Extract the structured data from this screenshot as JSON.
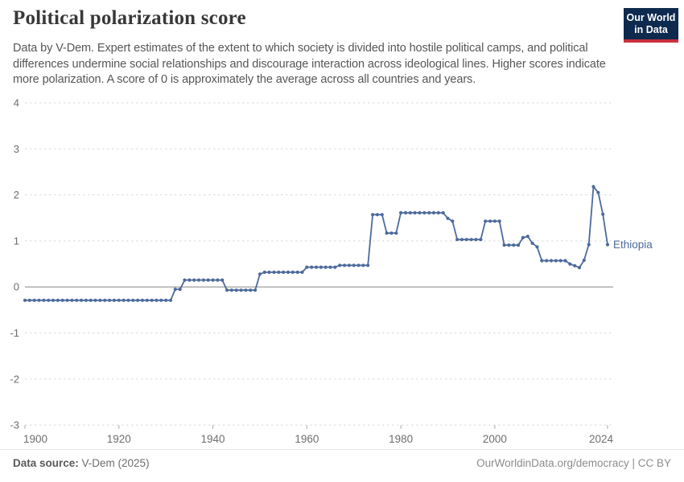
{
  "header": {
    "title": "Political polarization score",
    "subtitle": "Data by V-Dem. Expert estimates of the extent to which society is divided into hostile political camps, and political differences undermine social relationships and discourage interaction across ideological lines. Higher scores indicate more polarization. A score of 0 is approximately the average across all countries and years.",
    "logo": {
      "line1": "Our World",
      "line2": "in Data"
    }
  },
  "chart_data": {
    "type": "line",
    "title": "Political polarization score",
    "xlabel": "",
    "ylabel": "",
    "ylim": [
      -3,
      4
    ],
    "yticks": [
      4,
      3,
      2,
      1,
      0,
      -1,
      -2,
      -3
    ],
    "xticks": [
      1900,
      1920,
      1940,
      1960,
      1980,
      2000,
      2024
    ],
    "grid": "horizontal dashed gridlines, solid line at zero",
    "legend": "entity label at end of line",
    "years": {
      "start": 1900,
      "end": 2024,
      "step": 1
    },
    "series": [
      {
        "name": "Ethiopia",
        "values": [
          -0.29,
          -0.29,
          -0.29,
          -0.29,
          -0.29,
          -0.29,
          -0.29,
          -0.29,
          -0.29,
          -0.29,
          -0.29,
          -0.29,
          -0.29,
          -0.29,
          -0.29,
          -0.29,
          -0.29,
          -0.29,
          -0.29,
          -0.29,
          -0.29,
          -0.29,
          -0.29,
          -0.29,
          -0.29,
          -0.29,
          -0.29,
          -0.29,
          -0.29,
          -0.29,
          -0.29,
          -0.29,
          -0.05,
          -0.05,
          0.15,
          0.15,
          0.15,
          0.15,
          0.15,
          0.15,
          0.15,
          0.15,
          0.15,
          -0.07,
          -0.07,
          -0.07,
          -0.07,
          -0.07,
          -0.07,
          -0.07,
          0.28,
          0.32,
          0.32,
          0.32,
          0.32,
          0.32,
          0.32,
          0.32,
          0.32,
          0.32,
          0.43,
          0.43,
          0.43,
          0.43,
          0.43,
          0.43,
          0.43,
          0.47,
          0.47,
          0.47,
          0.47,
          0.47,
          0.47,
          0.47,
          1.57,
          1.57,
          1.57,
          1.17,
          1.17,
          1.17,
          1.61,
          1.61,
          1.61,
          1.61,
          1.61,
          1.61,
          1.61,
          1.61,
          1.61,
          1.61,
          1.49,
          1.43,
          1.03,
          1.03,
          1.03,
          1.03,
          1.03,
          1.03,
          1.43,
          1.43,
          1.43,
          1.43,
          0.91,
          0.91,
          0.91,
          0.91,
          1.07,
          1.1,
          0.95,
          0.87,
          0.57,
          0.57,
          0.57,
          0.57,
          0.57,
          0.57,
          0.5,
          0.46,
          0.42,
          0.58,
          0.92,
          2.18,
          2.05,
          1.58,
          0.92
        ]
      }
    ]
  },
  "footer": {
    "source_label": "Data source:",
    "source_value": " V-Dem (2025)",
    "credit": "OurWorldinData.org/democracy | CC BY"
  },
  "colors": {
    "line": "#4c6a9c",
    "grid": "#d9d9d9",
    "zero_line": "#929292",
    "axis_tick": "#a8a8a8",
    "axis_text": "#6e6e6e",
    "title_text": "#383838",
    "subtitle_text": "#565656",
    "footer_text": "#6d6d6d",
    "credit_text": "#8c8c8c",
    "logo_bg": "#0e2a4e",
    "logo_bar": "#c9303e"
  }
}
